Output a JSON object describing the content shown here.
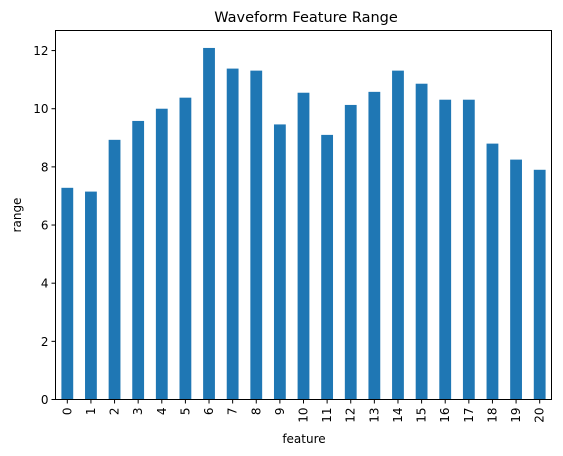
{
  "chart_data": {
    "type": "bar",
    "title": "Waveform Feature Range",
    "xlabel": "feature",
    "ylabel": "range",
    "categories": [
      "0",
      "1",
      "2",
      "3",
      "4",
      "5",
      "6",
      "7",
      "8",
      "9",
      "10",
      "11",
      "12",
      "13",
      "14",
      "15",
      "16",
      "17",
      "18",
      "19",
      "20"
    ],
    "values": [
      7.28,
      7.15,
      8.93,
      9.58,
      10.0,
      10.38,
      12.09,
      11.38,
      11.31,
      9.46,
      10.55,
      9.1,
      10.13,
      10.58,
      11.31,
      10.86,
      10.31,
      10.31,
      8.8,
      8.25,
      7.9
    ],
    "ylim": [
      0,
      12.69
    ],
    "yticks": [
      0,
      2,
      4,
      6,
      8,
      10,
      12
    ],
    "grid": false,
    "bar_color": "#1f77b4"
  }
}
